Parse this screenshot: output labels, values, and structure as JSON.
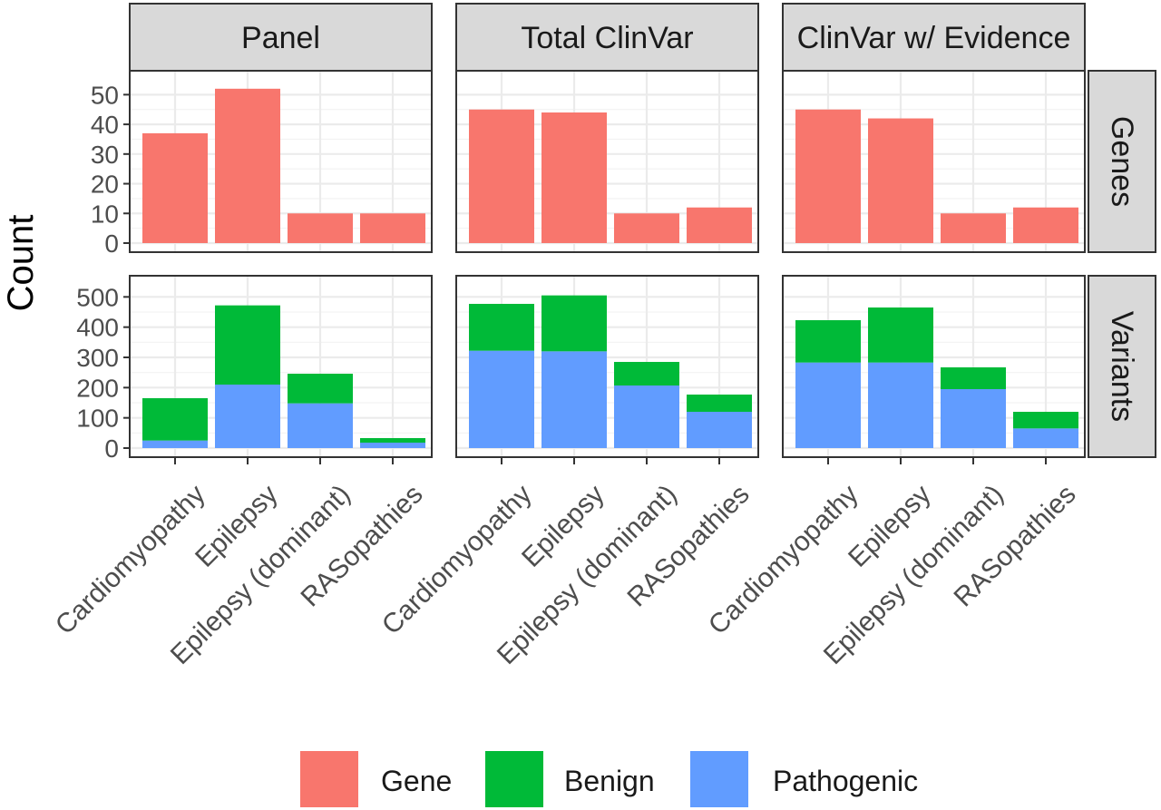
{
  "chart_data": {
    "type": "bar",
    "stacked": true,
    "ylabel": "Count",
    "xlabel": "",
    "columns": [
      "Panel",
      "Total ClinVar",
      "ClinVar w/ Evidence"
    ],
    "rows": [
      "Genes",
      "Variants"
    ],
    "categories": [
      "Cardiomyopathy",
      "Epilepsy",
      "Epilepsy (dominant)",
      "RASopathies"
    ],
    "ylim": {
      "Genes": [
        0,
        55
      ],
      "Variants": [
        0,
        540
      ]
    },
    "yticks": {
      "Genes": [
        0,
        10,
        20,
        30,
        40,
        50
      ],
      "Variants": [
        0,
        100,
        200,
        300,
        400,
        500
      ]
    },
    "grid": true,
    "legend": {
      "position": "bottom",
      "items": [
        {
          "name": "Gene",
          "color": "#F8766D"
        },
        {
          "name": "Benign",
          "color": "#00BA38"
        },
        {
          "name": "Pathogenic",
          "color": "#619CFF"
        }
      ]
    },
    "panels": [
      {
        "column": "Panel",
        "row": "Genes",
        "series": [
          {
            "name": "Gene",
            "values": [
              37,
              52,
              10,
              10
            ]
          }
        ]
      },
      {
        "column": "Total ClinVar",
        "row": "Genes",
        "series": [
          {
            "name": "Gene",
            "values": [
              45,
              44,
              10,
              12
            ]
          }
        ]
      },
      {
        "column": "ClinVar w/ Evidence",
        "row": "Genes",
        "series": [
          {
            "name": "Gene",
            "values": [
              45,
              42,
              10,
              12
            ]
          }
        ]
      },
      {
        "column": "Panel",
        "row": "Variants",
        "series": [
          {
            "name": "Pathogenic",
            "values": [
              25,
              210,
              148,
              18
            ]
          },
          {
            "name": "Benign",
            "values": [
              140,
              262,
              98,
              15
            ]
          }
        ]
      },
      {
        "column": "Total ClinVar",
        "row": "Variants",
        "series": [
          {
            "name": "Pathogenic",
            "values": [
              322,
              320,
              207,
              120
            ]
          },
          {
            "name": "Benign",
            "values": [
              155,
              185,
              78,
              57
            ]
          }
        ]
      },
      {
        "column": "ClinVar w/ Evidence",
        "row": "Variants",
        "series": [
          {
            "name": "Pathogenic",
            "values": [
              283,
              283,
              195,
              65
            ]
          },
          {
            "name": "Benign",
            "values": [
              140,
              182,
              72,
              55
            ]
          }
        ]
      }
    ]
  }
}
